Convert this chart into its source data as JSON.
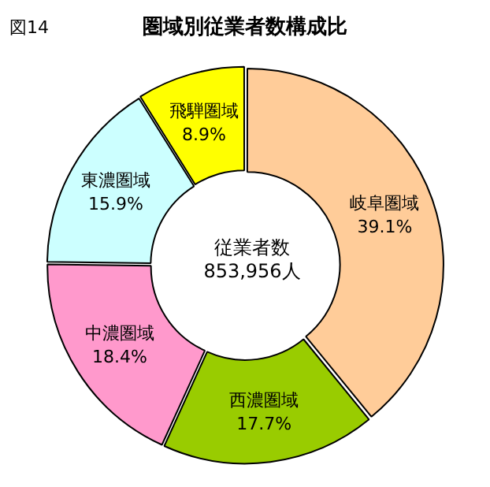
{
  "chart_data": {
    "type": "donut",
    "title": "圏域別従業者数構成比",
    "categories": [
      "岐阜圏域",
      "西濃圏域",
      "中濃圏域",
      "東濃圏域",
      "飛騨圏域"
    ],
    "values": [
      39.1,
      17.7,
      18.4,
      15.9,
      8.9
    ],
    "colors": [
      "#ffcc99",
      "#99cc00",
      "#ff99cc",
      "#ccffff",
      "#ffff00"
    ],
    "value_labels": [
      "39.1%",
      "17.7%",
      "18.4%",
      "15.9%",
      "8.9%"
    ],
    "annotations": [
      "図14",
      "従業者数",
      "853,956人"
    ],
    "legend": false
  }
}
